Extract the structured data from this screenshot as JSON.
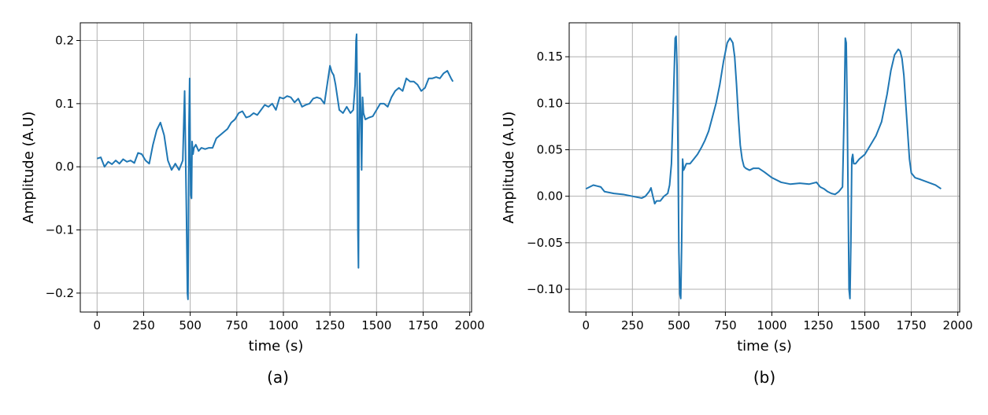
{
  "chart_data": [
    {
      "type": "line",
      "caption": "(a)",
      "xlabel": "time (s)",
      "ylabel": "Amplitude (A.U)",
      "xlim": [
        -90,
        2010
      ],
      "ylim": [
        -0.23,
        0.228
      ],
      "xticks": [
        0,
        250,
        500,
        750,
        1000,
        1250,
        1500,
        1750,
        2000
      ],
      "xtick_labels": [
        "0",
        "250",
        "500",
        "750",
        "1000",
        "1250",
        "1500",
        "1750",
        "2000"
      ],
      "yticks": [
        -0.2,
        -0.1,
        0.0,
        0.1,
        0.2
      ],
      "ytick_labels": [
        "−0.2",
        "−0.1",
        "0.0",
        "0.1",
        "0.2"
      ],
      "grid": true,
      "color": "#1f77b4",
      "series": [
        {
          "x": [
            0,
            20,
            40,
            60,
            80,
            100,
            120,
            140,
            160,
            180,
            200,
            220,
            240,
            260,
            280,
            300,
            320,
            340,
            360,
            380,
            400,
            420,
            440,
            460,
            470,
            475,
            480,
            485,
            488,
            490,
            493,
            497,
            500,
            503,
            507,
            510,
            515,
            520,
            530,
            545,
            560,
            580,
            600,
            620,
            640,
            660,
            680,
            700,
            720,
            740,
            760,
            780,
            800,
            820,
            840,
            860,
            880,
            900,
            920,
            940,
            960,
            980,
            1000,
            1020,
            1040,
            1060,
            1080,
            1100,
            1120,
            1140,
            1160,
            1180,
            1200,
            1220,
            1240,
            1250,
            1260,
            1270,
            1280,
            1300,
            1320,
            1340,
            1360,
            1375,
            1385,
            1390,
            1393,
            1396,
            1400,
            1403,
            1406,
            1410,
            1415,
            1420,
            1425,
            1430,
            1440,
            1460,
            1480,
            1500,
            1520,
            1540,
            1560,
            1580,
            1600,
            1620,
            1640,
            1660,
            1680,
            1700,
            1720,
            1740,
            1760,
            1780,
            1800,
            1820,
            1840,
            1860,
            1880,
            1900,
            1910
          ],
          "y": [
            0.013,
            0.015,
            0.0,
            0.008,
            0.004,
            0.01,
            0.005,
            0.012,
            0.008,
            0.01,
            0.006,
            0.022,
            0.02,
            0.01,
            0.005,
            0.035,
            0.058,
            0.07,
            0.05,
            0.01,
            -0.005,
            0.005,
            -0.005,
            0.01,
            0.12,
            0.02,
            -0.08,
            -0.2,
            -0.21,
            -0.12,
            0.06,
            0.14,
            0.02,
            -0.045,
            -0.05,
            0.04,
            0.02,
            0.03,
            0.035,
            0.025,
            0.03,
            0.028,
            0.03,
            0.03,
            0.045,
            0.05,
            0.055,
            0.06,
            0.07,
            0.075,
            0.085,
            0.088,
            0.078,
            0.08,
            0.085,
            0.082,
            0.09,
            0.098,
            0.095,
            0.1,
            0.09,
            0.11,
            0.108,
            0.112,
            0.11,
            0.102,
            0.108,
            0.095,
            0.098,
            0.1,
            0.108,
            0.11,
            0.108,
            0.1,
            0.14,
            0.16,
            0.15,
            0.145,
            0.13,
            0.09,
            0.085,
            0.095,
            0.085,
            0.09,
            0.13,
            0.2,
            0.21,
            0.12,
            -0.1,
            -0.16,
            0.05,
            0.148,
            0.09,
            -0.005,
            0.11,
            0.085,
            0.075,
            0.078,
            0.08,
            0.09,
            0.1,
            0.1,
            0.095,
            0.11,
            0.12,
            0.125,
            0.12,
            0.14,
            0.135,
            0.135,
            0.13,
            0.12,
            0.125,
            0.14,
            0.14,
            0.142,
            0.14,
            0.148,
            0.152,
            0.14,
            0.135
          ]
        }
      ]
    },
    {
      "type": "line",
      "caption": "(b)",
      "xlabel": "time (s)",
      "ylabel": "Amplitude (A.U)",
      "xlim": [
        -90,
        2010
      ],
      "ylim": [
        -0.1245,
        0.1865
      ],
      "xticks": [
        0,
        250,
        500,
        750,
        1000,
        1250,
        1500,
        1750,
        2000
      ],
      "xtick_labels": [
        "0",
        "250",
        "500",
        "750",
        "1000",
        "1250",
        "1500",
        "1750",
        "2000"
      ],
      "yticks": [
        -0.1,
        -0.05,
        0.0,
        0.05,
        0.1,
        0.15
      ],
      "ytick_labels": [
        "−0.10",
        "−0.05",
        "0.00",
        "0.05",
        "0.10",
        "0.15"
      ],
      "grid": true,
      "color": "#1f77b4",
      "series": [
        {
          "x": [
            0,
            20,
            40,
            60,
            80,
            100,
            150,
            200,
            250,
            300,
            320,
            340,
            350,
            360,
            370,
            380,
            400,
            420,
            440,
            450,
            460,
            470,
            480,
            485,
            490,
            495,
            500,
            505,
            510,
            515,
            520,
            525,
            530,
            540,
            560,
            580,
            600,
            620,
            640,
            660,
            680,
            700,
            720,
            740,
            760,
            775,
            790,
            800,
            810,
            820,
            830,
            840,
            850,
            860,
            880,
            900,
            930,
            960,
            1000,
            1050,
            1100,
            1150,
            1200,
            1240,
            1260,
            1280,
            1300,
            1320,
            1340,
            1360,
            1380,
            1390,
            1395,
            1400,
            1405,
            1410,
            1415,
            1420,
            1425,
            1430,
            1435,
            1440,
            1450,
            1470,
            1500,
            1530,
            1560,
            1590,
            1620,
            1640,
            1660,
            1680,
            1690,
            1700,
            1710,
            1720,
            1730,
            1740,
            1750,
            1770,
            1800,
            1840,
            1880,
            1910
          ],
          "y": [
            0.008,
            0.01,
            0.012,
            0.011,
            0.01,
            0.005,
            0.003,
            0.002,
            0.0,
            -0.002,
            0.0,
            0.005,
            0.009,
            0.0,
            -0.008,
            -0.005,
            -0.005,
            0.0,
            0.003,
            0.012,
            0.035,
            0.1,
            0.17,
            0.172,
            0.14,
            0.05,
            -0.06,
            -0.105,
            -0.11,
            -0.05,
            0.04,
            0.028,
            0.03,
            0.035,
            0.035,
            0.04,
            0.045,
            0.052,
            0.06,
            0.07,
            0.085,
            0.1,
            0.12,
            0.145,
            0.165,
            0.17,
            0.165,
            0.15,
            0.12,
            0.085,
            0.055,
            0.04,
            0.032,
            0.03,
            0.028,
            0.03,
            0.03,
            0.026,
            0.02,
            0.015,
            0.013,
            0.014,
            0.013,
            0.015,
            0.01,
            0.008,
            0.005,
            0.003,
            0.002,
            0.005,
            0.01,
            0.1,
            0.17,
            0.165,
            0.1,
            0.0,
            -0.1,
            -0.11,
            -0.05,
            0.04,
            0.045,
            0.035,
            0.035,
            0.04,
            0.045,
            0.055,
            0.065,
            0.08,
            0.11,
            0.135,
            0.152,
            0.158,
            0.156,
            0.148,
            0.13,
            0.1,
            0.07,
            0.04,
            0.025,
            0.02,
            0.018,
            0.015,
            0.012,
            0.008
          ]
        }
      ]
    }
  ]
}
